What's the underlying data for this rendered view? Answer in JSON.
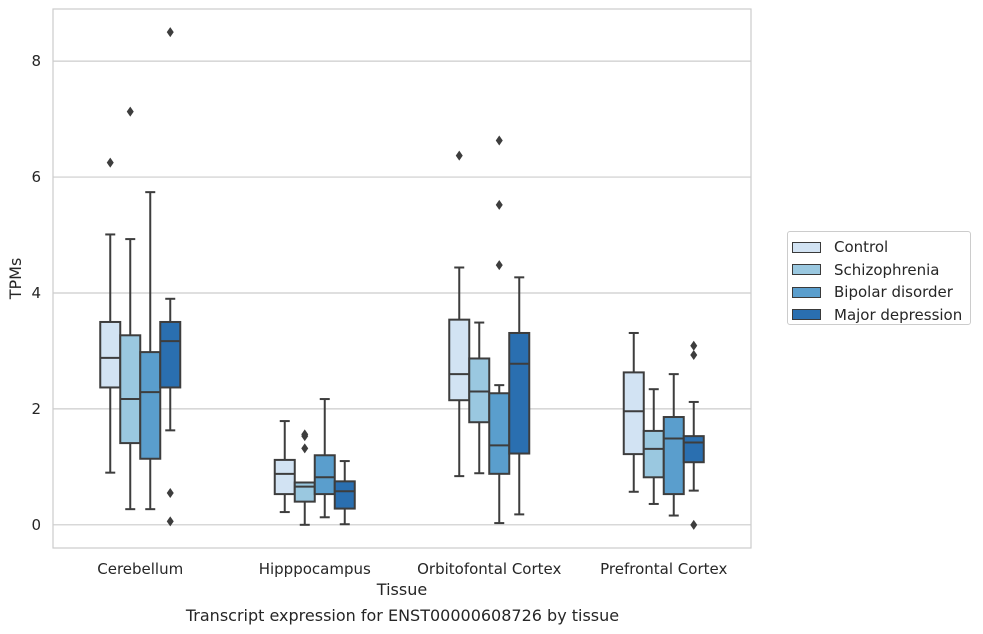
{
  "chart_data": {
    "type": "box",
    "title": "",
    "caption": "Transcript expression for ENST00000608726 by tissue",
    "xlabel": "Tissue",
    "ylabel": "TPMs",
    "ylim": [
      -0.4,
      8.9
    ],
    "yticks": [
      0,
      2,
      4,
      6,
      8
    ],
    "grid": true,
    "legend_position": "right",
    "categories": [
      "Cerebellum",
      "Hipppocampus",
      "Orbitofontal Cortex",
      "Prefrontal Cortex"
    ],
    "series": [
      {
        "name": "Control",
        "color": "#d2e3f3",
        "boxes": [
          {
            "whisker_low": 0.9,
            "q1": 2.37,
            "median": 2.88,
            "q3": 3.5,
            "whisker_high": 5.01,
            "outliers": [
              6.25
            ]
          },
          {
            "whisker_low": 0.22,
            "q1": 0.53,
            "median": 0.88,
            "q3": 1.12,
            "whisker_high": 1.79,
            "outliers": []
          },
          {
            "whisker_low": 0.84,
            "q1": 2.15,
            "median": 2.6,
            "q3": 3.54,
            "whisker_high": 4.44,
            "outliers": [
              6.37
            ]
          },
          {
            "whisker_low": 0.57,
            "q1": 1.22,
            "median": 1.96,
            "q3": 2.63,
            "whisker_high": 3.31,
            "outliers": []
          }
        ]
      },
      {
        "name": "Schizophrenia",
        "color": "#9ac8e0",
        "boxes": [
          {
            "whisker_low": 0.27,
            "q1": 1.41,
            "median": 2.17,
            "q3": 3.27,
            "whisker_high": 4.93,
            "outliers": [
              7.13
            ]
          },
          {
            "whisker_low": 0.0,
            "q1": 0.4,
            "median": 0.66,
            "q3": 0.73,
            "whisker_high": 0.73,
            "outliers": [
              1.32,
              1.53,
              1.56
            ]
          },
          {
            "whisker_low": 0.89,
            "q1": 1.77,
            "median": 2.3,
            "q3": 2.87,
            "whisker_high": 3.49,
            "outliers": []
          },
          {
            "whisker_low": 0.36,
            "q1": 0.82,
            "median": 1.31,
            "q3": 1.62,
            "whisker_high": 2.34,
            "outliers": []
          }
        ]
      },
      {
        "name": "Bipolar disorder",
        "color": "#5a9ecd",
        "boxes": [
          {
            "whisker_low": 0.27,
            "q1": 1.14,
            "median": 2.29,
            "q3": 2.98,
            "whisker_high": 5.74,
            "outliers": []
          },
          {
            "whisker_low": 0.13,
            "q1": 0.53,
            "median": 0.82,
            "q3": 1.2,
            "whisker_high": 2.17,
            "outliers": []
          },
          {
            "whisker_low": 0.03,
            "q1": 0.88,
            "median": 1.37,
            "q3": 2.27,
            "whisker_high": 2.41,
            "outliers": [
              4.48,
              5.52,
              6.63
            ]
          },
          {
            "whisker_low": 0.16,
            "q1": 0.53,
            "median": 1.49,
            "q3": 1.86,
            "whisker_high": 2.6,
            "outliers": []
          }
        ]
      },
      {
        "name": "Major depression",
        "color": "#2a6fb0",
        "boxes": [
          {
            "whisker_low": 1.63,
            "q1": 2.37,
            "median": 3.17,
            "q3": 3.5,
            "whisker_high": 3.9,
            "outliers": [
              0.06,
              0.55,
              8.5
            ]
          },
          {
            "whisker_low": 0.01,
            "q1": 0.28,
            "median": 0.58,
            "q3": 0.75,
            "whisker_high": 1.1,
            "outliers": []
          },
          {
            "whisker_low": 0.18,
            "q1": 1.23,
            "median": 2.78,
            "q3": 3.31,
            "whisker_high": 4.27,
            "outliers": []
          },
          {
            "whisker_low": 0.59,
            "q1": 1.08,
            "median": 1.42,
            "q3": 1.53,
            "whisker_high": 2.12,
            "outliers": [
              0.0,
              2.93,
              3.09
            ]
          }
        ]
      }
    ]
  }
}
